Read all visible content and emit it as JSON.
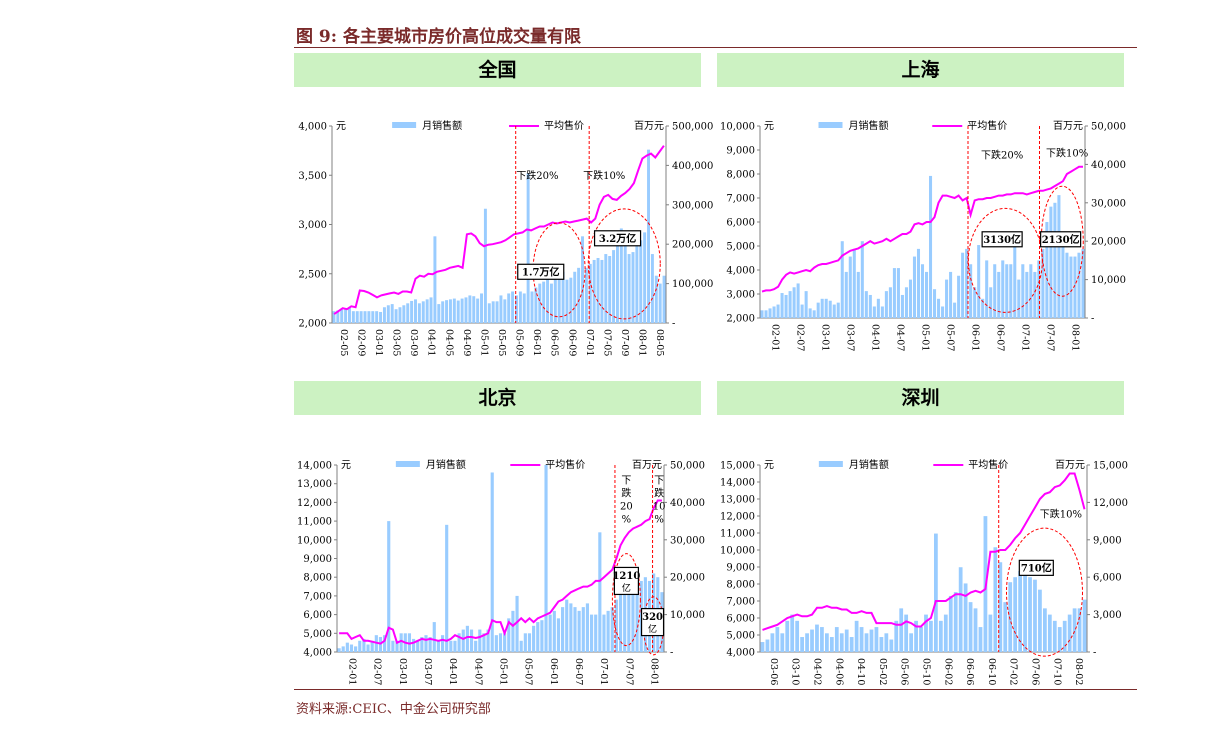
{
  "figure_title": "图 9:  各主要城市房价高位成交量有限",
  "source_note": "资料来源:CEIC、中金公司研究部",
  "legend_labels": {
    "bar": "月销售额",
    "line": "平均售价",
    "left_unit": "元",
    "right_unit": "百万元"
  },
  "colors": {
    "bar": "#99ccff",
    "line": "#ff00ff",
    "annotation": "#ff0000",
    "header_bg": "#ccf2c2",
    "title": "#7a2a2a"
  },
  "chart_data": [
    {
      "type": "bar+line",
      "title": "全国",
      "x_start": "2002-05",
      "x_labels": [
        "02-05",
        "02-09",
        "03-01",
        "03-05",
        "03-09",
        "04-01",
        "04-05",
        "04-09",
        "05-01",
        "05-05",
        "05-09",
        "06-01",
        "06-05",
        "06-09",
        "07-01",
        "07-05",
        "07-09",
        "08-01",
        "08-05"
      ],
      "left_axis": {
        "min": 2000,
        "max": 4000,
        "ticks": [
          "2,000",
          "2,500",
          "3,000",
          "3,500",
          "4,000"
        ]
      },
      "right_axis": {
        "min": 0,
        "max": 500000,
        "ticks": [
          "-",
          "100,000",
          "200,000",
          "300,000",
          "400,000",
          "500,000"
        ]
      },
      "series": [
        {
          "name": "平均售价",
          "axis": "left",
          "values": [
            2090,
            2120,
            2150,
            2140,
            2170,
            2160,
            2330,
            2325,
            2310,
            2285,
            2260,
            2280,
            2290,
            2300,
            2310,
            2295,
            2320,
            2320,
            2310,
            2450,
            2480,
            2470,
            2500,
            2495,
            2520,
            2530,
            2540,
            2560,
            2570,
            2580,
            2560,
            2900,
            2910,
            2880,
            2810,
            2780,
            2795,
            2800,
            2810,
            2820,
            2840,
            2870,
            2900,
            2910,
            2920,
            2950,
            2940,
            2960,
            2980,
            2980,
            3000,
            3020,
            3010,
            3020,
            3030,
            3020,
            3030,
            3040,
            3050,
            3060,
            3020,
            3060,
            3200,
            3280,
            3300,
            3260,
            3250,
            3290,
            3320,
            3360,
            3420,
            3550,
            3670,
            3700,
            3720,
            3680,
            3740,
            3800
          ]
        },
        {
          "name": "月销售额",
          "axis": "right",
          "values": [
            30000,
            32000,
            35000,
            38000,
            40000,
            30000,
            30000,
            30000,
            30000,
            30000,
            30000,
            30000,
            28000,
            40000,
            45000,
            48000,
            35000,
            40000,
            45000,
            50000,
            56000,
            60000,
            50000,
            55000,
            60000,
            65000,
            220000,
            48000,
            55000,
            58000,
            60000,
            62000,
            57000,
            62000,
            65000,
            70000,
            68000,
            62000,
            75000,
            290000,
            50000,
            55000,
            55000,
            70000,
            60000,
            75000,
            80000,
            70000,
            80000,
            75000,
            380000,
            80000,
            90000,
            100000,
            105000,
            115000,
            100000,
            110000,
            120000,
            130000,
            110000,
            115000,
            130000,
            140000,
            220000,
            140000,
            150000,
            160000,
            165000,
            160000,
            175000,
            170000,
            185000,
            230000,
            240000,
            200000,
            175000,
            180000,
            195000,
            210000,
            230000,
            440000,
            175000,
            120000,
            100000,
            120000
          ]
        }
      ],
      "annotations": [
        {
          "text": "下跌20%"
        },
        {
          "text": "下跌10%"
        },
        {
          "text": "1.7万亿"
        },
        {
          "text": "3.2万亿"
        }
      ]
    },
    {
      "type": "bar+line",
      "title": "上海",
      "x_start": "2002-01",
      "x_labels": [
        "02-01",
        "02-07",
        "03-01",
        "03-07",
        "04-01",
        "04-07",
        "05-01",
        "05-07",
        "06-01",
        "06-07",
        "07-01",
        "07-07",
        "08-01"
      ],
      "left_axis": {
        "min": 2000,
        "max": 10000,
        "ticks": [
          "2,000",
          "3,000",
          "4,000",
          "5,000",
          "6,000",
          "7,000",
          "8,000",
          "9,000",
          "10,000"
        ]
      },
      "right_axis": {
        "min": 0,
        "max": 50000,
        "ticks": [
          "-",
          "10,000",
          "20,000",
          "30,000",
          "40,000",
          "50,000"
        ]
      },
      "series": [
        {
          "name": "平均售价",
          "axis": "left",
          "values": [
            3100,
            3150,
            3150,
            3200,
            3300,
            3600,
            3800,
            3900,
            3850,
            3900,
            3950,
            4000,
            3950,
            4100,
            4200,
            4250,
            4250,
            4300,
            4350,
            4400,
            4600,
            4700,
            4800,
            4850,
            4900,
            5000,
            5100,
            5200,
            5100,
            5150,
            5200,
            5300,
            5200,
            5300,
            5400,
            5500,
            5500,
            5600,
            5900,
            5950,
            5900,
            6000,
            6000,
            6200,
            6800,
            7100,
            7100,
            7050,
            7000,
            7100,
            6900,
            7000,
            6300,
            6900,
            6950,
            6950,
            7000,
            7000,
            7050,
            7100,
            7100,
            7150,
            7150,
            7200,
            7200,
            7200,
            7150,
            7200,
            7250,
            7300,
            7300,
            7350,
            7400,
            7500,
            7600,
            7700,
            8000,
            8100,
            8200,
            8300,
            8300
          ]
        },
        {
          "name": "月销售额",
          "axis": "right",
          "values": [
            2000,
            2000,
            2500,
            3000,
            3500,
            6500,
            6000,
            7000,
            8000,
            9000,
            3500,
            7000,
            2500,
            2000,
            4000,
            5000,
            5000,
            4500,
            3500,
            4000,
            20000,
            12000,
            16000,
            18000,
            12000,
            20000,
            7000,
            6000,
            3000,
            5000,
            3000,
            7000,
            8000,
            13000,
            13000,
            6000,
            8000,
            10000,
            16000,
            18000,
            14000,
            12000,
            37000,
            7500,
            5000,
            3000,
            10000,
            12000,
            4000,
            11000,
            17000,
            18000,
            14000,
            8000,
            19000,
            5000,
            15000,
            8000,
            14000,
            12000,
            15000,
            14000,
            14000,
            19000,
            10000,
            14000,
            12000,
            14000,
            12000,
            15000,
            18000,
            25000,
            29000,
            30000,
            32000,
            19000,
            17000,
            16000,
            16000,
            17000,
            18000
          ]
        }
      ],
      "annotations": [
        {
          "text": "下跌20%"
        },
        {
          "text": "下跌10%"
        },
        {
          "text": "3130亿"
        },
        {
          "text": "2130亿"
        }
      ]
    },
    {
      "type": "bar+line",
      "title": "北京",
      "x_start": "2002-01",
      "x_labels": [
        "02-01",
        "02-07",
        "03-01",
        "03-07",
        "04-01",
        "04-07",
        "05-01",
        "05-07",
        "06-01",
        "06-07",
        "07-01",
        "07-07",
        "08-01"
      ],
      "left_axis": {
        "min": 4000,
        "max": 14000,
        "ticks": [
          "4,000",
          "5,000",
          "6,000",
          "7,000",
          "8,000",
          "9,000",
          "10,000",
          "11,000",
          "12,000",
          "13,000",
          "14,000"
        ]
      },
      "right_axis": {
        "min": 0,
        "max": 50000,
        "ticks": [
          "-",
          "10,000",
          "20,000",
          "30,000",
          "40,000",
          "50,000"
        ]
      },
      "series": [
        {
          "name": "平均售价",
          "axis": "left",
          "values": [
            5000,
            5000,
            5000,
            4700,
            4800,
            4900,
            4600,
            4600,
            4550,
            4500,
            4450,
            4600,
            5300,
            5200,
            4500,
            4600,
            4500,
            4450,
            4500,
            4600,
            4700,
            4650,
            4700,
            4650,
            4600,
            4650,
            4600,
            4700,
            4900,
            4800,
            4700,
            4800,
            4800,
            4750,
            4800,
            4900,
            5000,
            5700,
            5600,
            5600,
            5000,
            5600,
            5400,
            5600,
            5800,
            5600,
            5800,
            5600,
            5800,
            5900,
            6000,
            6100,
            6400,
            6700,
            6800,
            7000,
            7200,
            7300,
            7400,
            7500,
            7500,
            7600,
            7800,
            7800,
            8000,
            8200,
            8400,
            9000,
            9700,
            10100,
            10400,
            10600,
            10700,
            10800,
            11000,
            11100,
            11700,
            12100,
            12100
          ]
        },
        {
          "name": "月销售额",
          "axis": "right",
          "values": [
            1000,
            1500,
            2500,
            2000,
            1500,
            3000,
            3500,
            2000,
            3000,
            4500,
            4000,
            4500,
            35000,
            3000,
            3000,
            5000,
            5000,
            5000,
            3500,
            3000,
            4000,
            4500,
            4000,
            8000,
            3000,
            4500,
            34000,
            3000,
            3000,
            5000,
            6000,
            7000,
            6000,
            3000,
            6000,
            5000,
            6000,
            48000,
            4500,
            5000,
            5000,
            9000,
            11000,
            15000,
            3000,
            5000,
            5000,
            7000,
            8000,
            8500,
            50000,
            10000,
            11000,
            9000,
            12000,
            14000,
            13000,
            12000,
            11000,
            12000,
            13000,
            10000,
            10000,
            32000,
            10000,
            11000,
            12000,
            14000,
            16000,
            19000,
            22000,
            20000,
            18000,
            19000,
            20000,
            19000,
            21000,
            20000,
            16000
          ]
        }
      ],
      "annotations": [
        {
          "text": "下跌20%"
        },
        {
          "text": "下跌10%"
        },
        {
          "text": "1210亿"
        },
        {
          "text": "320亿"
        }
      ]
    },
    {
      "type": "bar+line",
      "title": "深圳",
      "x_start": "2003-06",
      "x_labels": [
        "03-06",
        "03-10",
        "04-02",
        "04-06",
        "04-10",
        "05-02",
        "05-06",
        "05-10",
        "06-02",
        "06-06",
        "06-10",
        "07-02",
        "07-06",
        "07-10",
        "08-02"
      ],
      "left_axis": {
        "min": 4000,
        "max": 15000,
        "ticks": [
          "4,000",
          "5,000",
          "6,000",
          "7,000",
          "8,000",
          "9,000",
          "10,000",
          "11,000",
          "12,000",
          "13,000",
          "14,000",
          "15,000"
        ]
      },
      "right_axis": {
        "min": 0,
        "max": 15000,
        "ticks": [
          "-",
          "3,000",
          "6,000",
          "9,000",
          "12,000",
          "15,000"
        ]
      },
      "series": [
        {
          "name": "平均售价",
          "axis": "left",
          "values": [
            5300,
            5400,
            5500,
            5600,
            5800,
            6000,
            6100,
            6200,
            6100,
            6100,
            6200,
            6600,
            6600,
            6700,
            6600,
            6600,
            6500,
            6500,
            6300,
            6300,
            6400,
            6300,
            6300,
            5700,
            5700,
            5700,
            5700,
            5600,
            5600,
            5800,
            5700,
            5500,
            5500,
            5800,
            6000,
            7000,
            7000,
            7000,
            7200,
            7400,
            7400,
            7300,
            7500,
            7600,
            7500,
            7700,
            9900,
            9900,
            10000,
            10000,
            10300,
            10700,
            11000,
            11500,
            12000,
            12500,
            13000,
            13300,
            13400,
            13700,
            13800,
            14100,
            14500,
            14500,
            13500,
            12400
          ]
        },
        {
          "name": "月销售额",
          "axis": "right",
          "values": [
            800,
            1000,
            1500,
            2000,
            1500,
            2500,
            3000,
            2500,
            1200,
            1500,
            1800,
            2200,
            2000,
            1500,
            1200,
            2000,
            1500,
            1800,
            1200,
            2500,
            2000,
            1500,
            1800,
            2000,
            1200,
            1500,
            1000,
            2500,
            3500,
            3000,
            1500,
            2500,
            2000,
            3000,
            2500,
            9500,
            2500,
            3000,
            4500,
            4800,
            6800,
            5500,
            4000,
            3500,
            2000,
            10900,
            3000,
            8400,
            7200,
            4000,
            5600,
            6000,
            6500,
            7300,
            6000,
            5800,
            5000,
            3500,
            3000,
            2500,
            2000,
            2500,
            3000,
            3500,
            3500,
            4200
          ]
        }
      ],
      "annotations": [
        {
          "text": "下跌10%"
        },
        {
          "text": "710亿"
        }
      ]
    }
  ]
}
